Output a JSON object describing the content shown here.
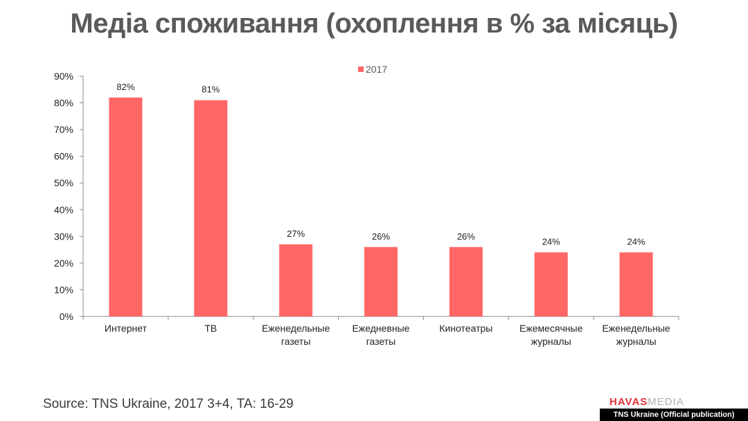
{
  "title": "Медіа споживання (охоплення в % за місяць)",
  "source": "Source: TNS Ukraine, 2017 3+4, TA: 16-29",
  "logo": {
    "part1": "HAVAS",
    "part2": "MEDIA"
  },
  "credit": "TNS Ukraine (Official publication)",
  "colors": {
    "bar": "#ff6666",
    "title": "#5a5a5a",
    "logo_red": "#e2333a"
  },
  "chart_data": {
    "type": "bar",
    "categories": [
      [
        "Интернет"
      ],
      [
        "ТВ"
      ],
      [
        "Еженедельные",
        "газеты"
      ],
      [
        "Ежедневные",
        "газеты"
      ],
      [
        "Кинотеатры"
      ],
      [
        "Ежемесячные",
        "журналы"
      ],
      [
        "Еженедельные",
        "журналы"
      ]
    ],
    "series": [
      {
        "name": "2017",
        "values": [
          82,
          81,
          27,
          26,
          26,
          24,
          24
        ]
      }
    ],
    "data_labels": [
      "82%",
      "81%",
      "27%",
      "26%",
      "26%",
      "24%",
      "24%"
    ],
    "y_ticks": [
      "0%",
      "10%",
      "20%",
      "30%",
      "40%",
      "50%",
      "60%",
      "70%",
      "80%",
      "90%"
    ],
    "ylim": [
      0,
      90
    ],
    "grid": false,
    "legend": "top"
  }
}
